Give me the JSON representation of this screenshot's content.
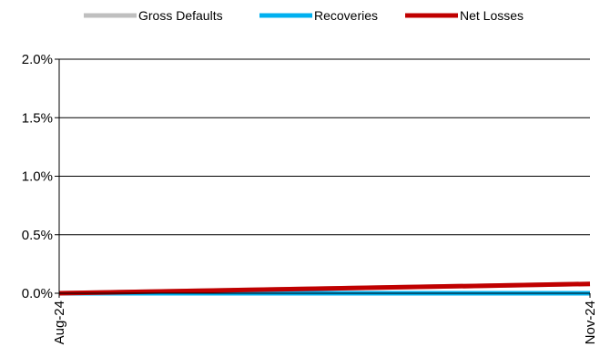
{
  "chart_data": {
    "type": "line",
    "x": [
      "Aug-24",
      "Nov-24"
    ],
    "series": [
      {
        "name": "Gross Defaults",
        "color": "#BFBFBF",
        "values": [
          0.0,
          0.0008
        ]
      },
      {
        "name": "Recoveries",
        "color": "#00B0F0",
        "values": [
          0.0,
          0.0
        ]
      },
      {
        "name": "Net Losses",
        "color": "#C00000",
        "values": [
          0.0,
          0.0008
        ]
      }
    ],
    "y_ticks": [
      {
        "value": 0.0,
        "label": "0.0%"
      },
      {
        "value": 0.005,
        "label": "0.5%"
      },
      {
        "value": 0.01,
        "label": "1.0%"
      },
      {
        "value": 0.015,
        "label": "1.5%"
      },
      {
        "value": 0.02,
        "label": "2.0%"
      }
    ],
    "ylim": [
      0,
      0.02
    ],
    "grid": true,
    "legend_position": "top"
  }
}
